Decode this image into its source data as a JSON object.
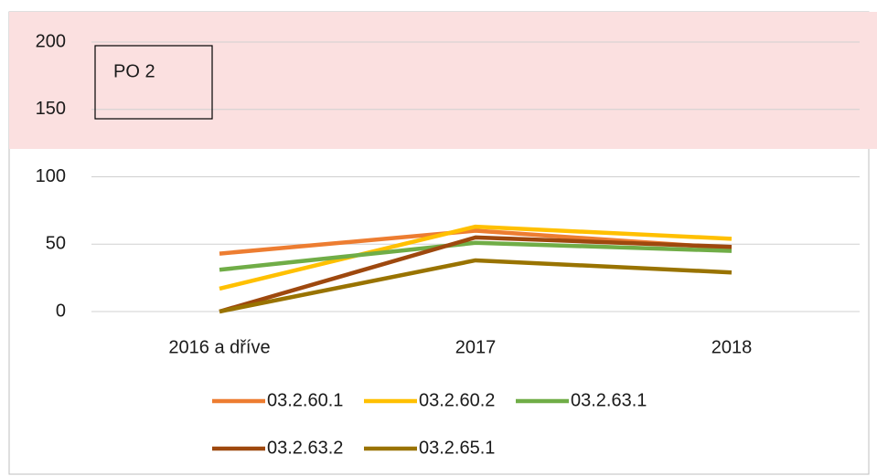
{
  "chart_data": {
    "type": "line",
    "annotation": "PO 2",
    "categories": [
      "2016 a dříve",
      "2017",
      "2018"
    ],
    "series": [
      {
        "name": "03.2.60.1",
        "color": "#ed7d31",
        "values": [
          43,
          60,
          47
        ]
      },
      {
        "name": "03.2.60.2",
        "color": "#ffc000",
        "values": [
          17,
          63,
          54
        ]
      },
      {
        "name": "03.2.63.1",
        "color": "#70ad47",
        "values": [
          31,
          51,
          45
        ]
      },
      {
        "name": "03.2.63.2",
        "color": "#9e480e",
        "values": [
          0,
          55,
          48
        ]
      },
      {
        "name": "03.2.65.1",
        "color": "#997300",
        "values": [
          0,
          38,
          29
        ]
      }
    ],
    "ylim": [
      0,
      200
    ],
    "yticks": [
      0,
      50,
      100,
      150,
      200
    ],
    "grid": true,
    "legend": "bottom"
  }
}
